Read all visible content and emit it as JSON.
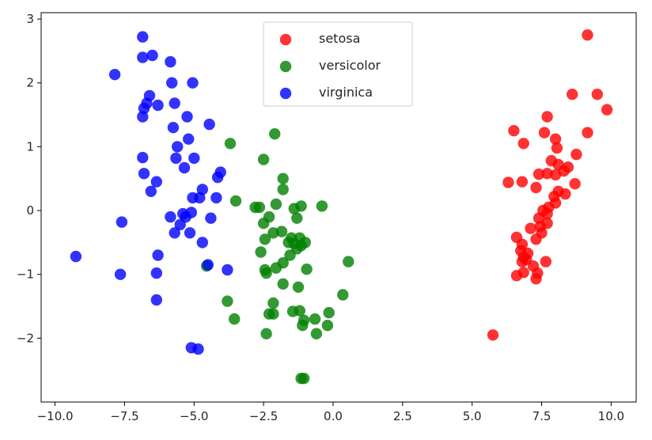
{
  "chart_data": {
    "type": "scatter",
    "xlim": [
      -10.5,
      10.9
    ],
    "ylim": [
      -3.0,
      3.1
    ],
    "x_ticks": [
      -10.0,
      -7.5,
      -5.0,
      -2.5,
      0.0,
      2.5,
      5.0,
      7.5,
      10.0
    ],
    "x_tick_labels": [
      "−10.0",
      "−7.5",
      "−5.0",
      "−2.5",
      "0.0",
      "2.5",
      "5.0",
      "7.5",
      "10.0"
    ],
    "y_ticks": [
      -2,
      -1,
      0,
      1,
      2,
      3
    ],
    "y_tick_labels": [
      "−2",
      "−1",
      "0",
      "1",
      "2",
      "3"
    ],
    "grid": false,
    "legend_position": "top-center",
    "series": [
      {
        "name": "setosa",
        "color": "#ff0000",
        "points": [
          [
            9.15,
            2.75
          ],
          [
            8.6,
            1.82
          ],
          [
            9.5,
            1.82
          ],
          [
            9.85,
            1.58
          ],
          [
            7.7,
            1.47
          ],
          [
            6.5,
            1.25
          ],
          [
            7.6,
            1.22
          ],
          [
            9.15,
            1.22
          ],
          [
            8.0,
            1.12
          ],
          [
            6.85,
            1.05
          ],
          [
            8.05,
            0.98
          ],
          [
            8.75,
            0.88
          ],
          [
            7.85,
            0.78
          ],
          [
            8.1,
            0.72
          ],
          [
            8.45,
            0.68
          ],
          [
            8.3,
            0.62
          ],
          [
            7.7,
            0.58
          ],
          [
            7.4,
            0.57
          ],
          [
            8.0,
            0.56
          ],
          [
            6.3,
            0.44
          ],
          [
            6.8,
            0.45
          ],
          [
            8.7,
            0.42
          ],
          [
            7.3,
            0.36
          ],
          [
            8.1,
            0.3
          ],
          [
            8.35,
            0.26
          ],
          [
            7.95,
            0.22
          ],
          [
            8.0,
            0.12
          ],
          [
            7.75,
            0.05
          ],
          [
            7.55,
            0.0
          ],
          [
            7.7,
            -0.05
          ],
          [
            7.4,
            -0.12
          ],
          [
            7.7,
            -0.2
          ],
          [
            7.45,
            -0.25
          ],
          [
            7.1,
            -0.28
          ],
          [
            7.5,
            -0.35
          ],
          [
            6.6,
            -0.42
          ],
          [
            7.3,
            -0.45
          ],
          [
            6.8,
            -0.53
          ],
          [
            6.75,
            -0.63
          ],
          [
            7.0,
            -0.67
          ],
          [
            6.85,
            -0.73
          ],
          [
            6.95,
            -0.77
          ],
          [
            6.8,
            -0.8
          ],
          [
            7.65,
            -0.8
          ],
          [
            7.2,
            -0.87
          ],
          [
            7.35,
            -0.98
          ],
          [
            6.85,
            -0.97
          ],
          [
            6.6,
            -1.02
          ],
          [
            7.3,
            -1.07
          ],
          [
            5.75,
            -1.95
          ]
        ]
      },
      {
        "name": "versicolor",
        "color": "#008000",
        "points": [
          [
            -3.7,
            1.05
          ],
          [
            -2.1,
            1.2
          ],
          [
            -2.5,
            0.8
          ],
          [
            -1.8,
            0.5
          ],
          [
            -1.8,
            0.33
          ],
          [
            -3.5,
            0.15
          ],
          [
            -2.8,
            0.05
          ],
          [
            -2.65,
            0.05
          ],
          [
            -2.3,
            -0.1
          ],
          [
            -2.05,
            0.1
          ],
          [
            -1.4,
            0.03
          ],
          [
            -1.15,
            0.07
          ],
          [
            -0.4,
            0.07
          ],
          [
            -1.3,
            -0.12
          ],
          [
            -2.5,
            -0.2
          ],
          [
            -2.15,
            -0.35
          ],
          [
            -1.85,
            -0.33
          ],
          [
            -2.45,
            -0.45
          ],
          [
            -1.5,
            -0.43
          ],
          [
            -1.2,
            -0.43
          ],
          [
            -1.6,
            -0.5
          ],
          [
            -1.4,
            -0.52
          ],
          [
            -1.15,
            -0.55
          ],
          [
            -1.0,
            -0.5
          ],
          [
            -1.3,
            -0.6
          ],
          [
            -2.6,
            -0.65
          ],
          [
            -1.55,
            -0.7
          ],
          [
            -1.8,
            -0.82
          ],
          [
            -2.05,
            -0.9
          ],
          [
            -2.45,
            -0.93
          ],
          [
            -2.4,
            -0.98
          ],
          [
            -0.95,
            -0.92
          ],
          [
            0.55,
            -0.8
          ],
          [
            -4.55,
            -0.87
          ],
          [
            -1.8,
            -1.15
          ],
          [
            -1.25,
            -1.2
          ],
          [
            0.35,
            -1.32
          ],
          [
            -3.8,
            -1.42
          ],
          [
            -2.15,
            -1.45
          ],
          [
            -1.2,
            -1.57
          ],
          [
            -1.45,
            -1.58
          ],
          [
            -2.3,
            -1.62
          ],
          [
            -2.15,
            -1.62
          ],
          [
            -0.15,
            -1.6
          ],
          [
            -0.65,
            -1.7
          ],
          [
            -3.55,
            -1.7
          ],
          [
            -1.05,
            -1.72
          ],
          [
            -1.1,
            -1.8
          ],
          [
            -0.2,
            -1.8
          ],
          [
            -0.6,
            -1.93
          ],
          [
            -2.4,
            -1.93
          ],
          [
            -1.15,
            -2.63
          ],
          [
            -1.05,
            -2.63
          ]
        ]
      },
      {
        "name": "virginica",
        "color": "#0000ff",
        "points": [
          [
            -6.85,
            2.72
          ],
          [
            -7.85,
            2.13
          ],
          [
            -6.85,
            2.4
          ],
          [
            -6.5,
            2.43
          ],
          [
            -5.85,
            2.33
          ],
          [
            -5.8,
            2.0
          ],
          [
            -5.05,
            2.0
          ],
          [
            -6.6,
            1.8
          ],
          [
            -6.7,
            1.68
          ],
          [
            -6.3,
            1.65
          ],
          [
            -5.7,
            1.68
          ],
          [
            -6.8,
            1.6
          ],
          [
            -6.85,
            1.47
          ],
          [
            -5.25,
            1.47
          ],
          [
            -4.45,
            1.35
          ],
          [
            -5.75,
            1.3
          ],
          [
            -5.2,
            1.12
          ],
          [
            -5.6,
            1.0
          ],
          [
            -6.85,
            0.83
          ],
          [
            -5.65,
            0.82
          ],
          [
            -5.0,
            0.82
          ],
          [
            -5.35,
            0.67
          ],
          [
            -6.8,
            0.58
          ],
          [
            -4.05,
            0.6
          ],
          [
            -4.15,
            0.52
          ],
          [
            -6.35,
            0.45
          ],
          [
            -4.7,
            0.33
          ],
          [
            -6.55,
            0.3
          ],
          [
            -5.05,
            0.2
          ],
          [
            -4.8,
            0.2
          ],
          [
            -4.2,
            0.2
          ],
          [
            -5.1,
            -0.03
          ],
          [
            -5.4,
            -0.05
          ],
          [
            -5.85,
            -0.1
          ],
          [
            -5.3,
            -0.1
          ],
          [
            -4.4,
            -0.12
          ],
          [
            -7.6,
            -0.18
          ],
          [
            -5.5,
            -0.22
          ],
          [
            -5.7,
            -0.35
          ],
          [
            -5.15,
            -0.35
          ],
          [
            -4.7,
            -0.5
          ],
          [
            -6.3,
            -0.7
          ],
          [
            -9.25,
            -0.72
          ],
          [
            -4.5,
            -0.85
          ],
          [
            -3.8,
            -0.93
          ],
          [
            -6.35,
            -0.98
          ],
          [
            -7.65,
            -1.0
          ],
          [
            -6.35,
            -1.4
          ],
          [
            -5.1,
            -2.15
          ],
          [
            -4.85,
            -2.17
          ]
        ]
      }
    ]
  }
}
